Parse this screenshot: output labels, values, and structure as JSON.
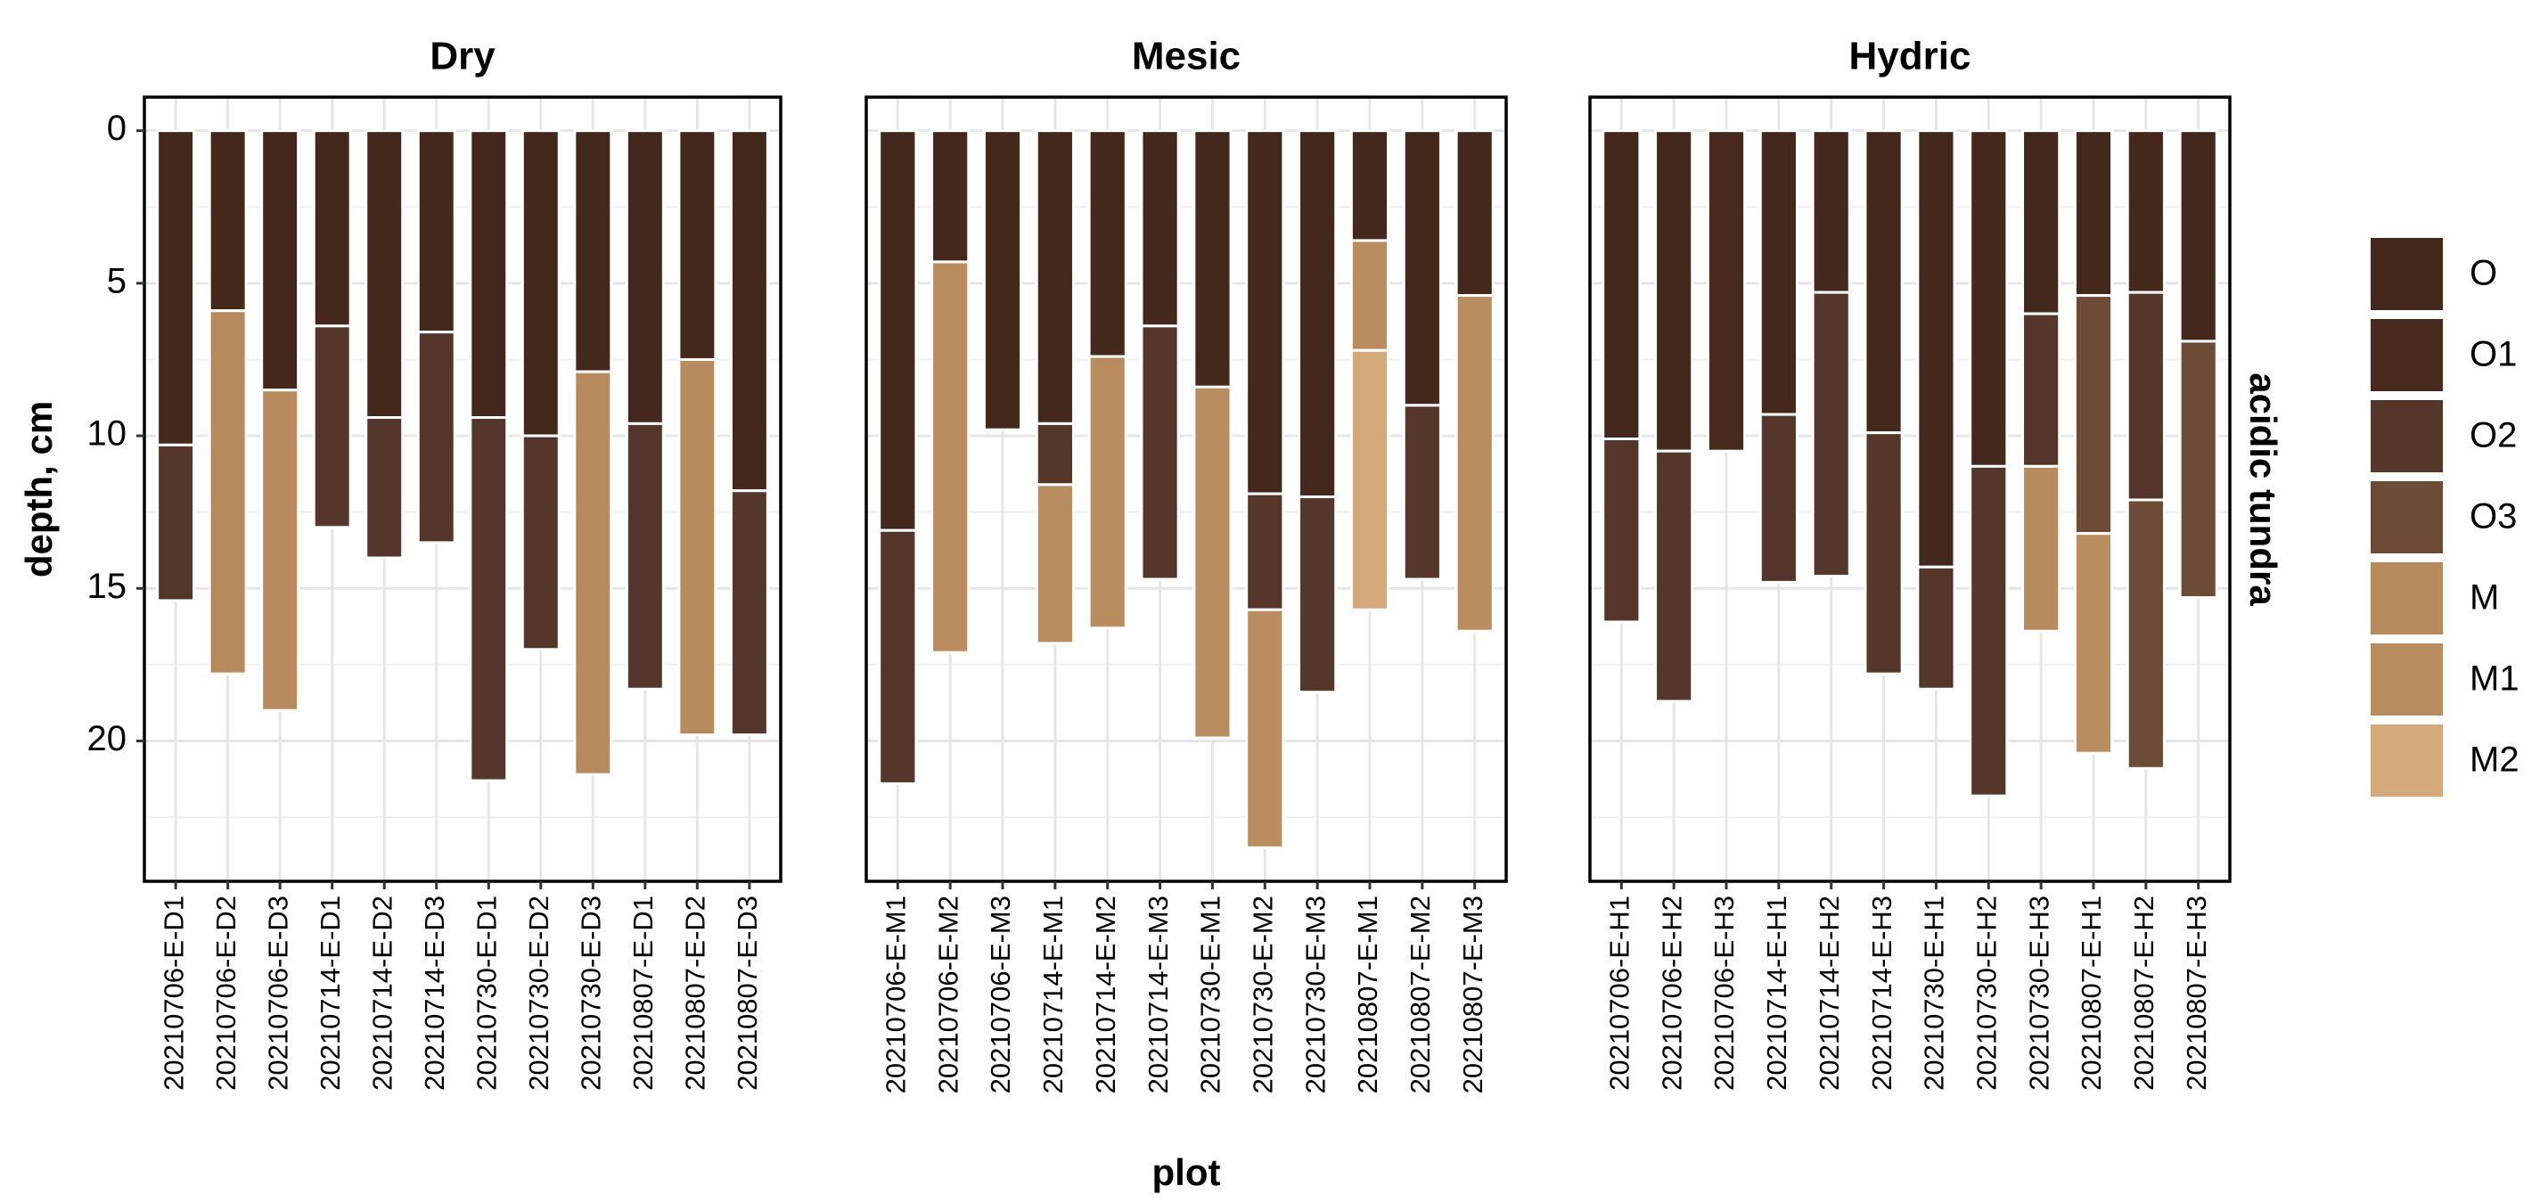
{
  "chart_data": {
    "type": "stacked-bar",
    "y_label": "depth, cm",
    "x_label": "plot",
    "strip_label": "acidic tundra",
    "ylim": [
      -1.1,
      24.6
    ],
    "y_reversed": true,
    "yticks": [
      0,
      5,
      10,
      15,
      20
    ],
    "minor_yticks": [
      2.5,
      7.5,
      12.5,
      17.5,
      22.5
    ],
    "grid": true,
    "legend": "right",
    "panels": [
      {
        "title": "Dry",
        "categories": [
          "20210706-E-D1",
          "20210706-E-D2",
          "20210706-E-D3",
          "20210714-E-D1",
          "20210714-E-D2",
          "20210714-E-D3",
          "20210730-E-D1",
          "20210730-E-D2",
          "20210730-E-D3",
          "20210807-E-D1",
          "20210807-E-D2",
          "20210807-E-D3"
        ]
      },
      {
        "title": "Mesic",
        "categories": [
          "20210706-E-M1",
          "20210706-E-M2",
          "20210706-E-M3",
          "20210714-E-M1",
          "20210714-E-M2",
          "20210714-E-M3",
          "20210730-E-M1",
          "20210730-E-M2",
          "20210730-E-M3",
          "20210807-E-M1",
          "20210807-E-M2",
          "20210807-E-M3"
        ]
      },
      {
        "title": "Hydric",
        "categories": [
          "20210706-E-H1",
          "20210706-E-H2",
          "20210706-E-H3",
          "20210714-E-H1",
          "20210714-E-H2",
          "20210714-E-H3",
          "20210730-E-H1",
          "20210730-E-H2",
          "20210730-E-H3",
          "20210807-E-H1",
          "20210807-E-H2",
          "20210807-E-H3"
        ]
      }
    ],
    "series": [
      {
        "name": "O",
        "color": "#45281c",
        "values": [
          [
            10.3,
            5.9,
            8.5,
            6.4,
            9.4,
            6.6,
            9.4,
            10.0,
            7.9,
            9.6,
            7.5,
            11.8
          ],
          [
            13.1,
            4.3,
            9.8,
            9.6,
            7.4,
            6.4,
            8.4,
            11.9,
            12.0,
            3.6,
            9.0,
            5.4
          ],
          [
            10.1,
            10.5,
            null,
            9.3,
            5.3,
            9.9,
            14.3,
            11.0,
            6.0,
            5.4,
            5.3,
            6.9
          ]
        ]
      },
      {
        "name": "O1",
        "color": "#48291e",
        "values": [
          [
            null,
            null,
            null,
            null,
            null,
            null,
            null,
            null,
            null,
            null,
            null,
            null
          ],
          [
            null,
            null,
            null,
            null,
            null,
            null,
            null,
            null,
            null,
            null,
            null,
            null
          ],
          [
            null,
            null,
            10.5,
            null,
            null,
            null,
            null,
            null,
            null,
            null,
            null,
            null
          ]
        ]
      },
      {
        "name": "O2",
        "color": "#54372a",
        "values": [
          [
            5.1,
            null,
            null,
            6.6,
            4.6,
            6.9,
            11.9,
            7.0,
            null,
            8.7,
            null,
            8.0
          ],
          [
            8.3,
            null,
            null,
            2.0,
            null,
            8.3,
            null,
            3.8,
            6.4,
            null,
            5.7,
            null
          ],
          [
            6.0,
            8.2,
            null,
            5.5,
            9.3,
            7.9,
            4.0,
            10.8,
            5.0,
            null,
            6.8,
            null
          ]
        ]
      },
      {
        "name": "O3",
        "color": "#6c4c37",
        "values": [
          [
            null,
            null,
            null,
            null,
            null,
            null,
            null,
            null,
            null,
            null,
            null,
            null
          ],
          [
            null,
            null,
            null,
            null,
            null,
            null,
            null,
            null,
            null,
            null,
            null,
            null
          ],
          [
            null,
            null,
            null,
            null,
            null,
            null,
            null,
            null,
            null,
            7.8,
            8.8,
            8.4
          ]
        ]
      },
      {
        "name": "M",
        "color": "#b78b5e",
        "values": [
          [
            null,
            11.9,
            10.5,
            null,
            null,
            null,
            null,
            null,
            13.2,
            null,
            12.3,
            null
          ],
          [
            null,
            null,
            null,
            null,
            null,
            null,
            null,
            null,
            null,
            null,
            null,
            null
          ],
          [
            null,
            null,
            null,
            null,
            null,
            null,
            null,
            null,
            5.4,
            null,
            null,
            null
          ]
        ]
      },
      {
        "name": "M1",
        "color": "#b98d60",
        "values": [
          [
            null,
            null,
            null,
            null,
            null,
            null,
            null,
            null,
            null,
            null,
            null,
            null
          ],
          [
            null,
            12.8,
            null,
            5.2,
            8.9,
            null,
            11.5,
            7.8,
            null,
            3.6,
            null,
            11.0
          ],
          [
            null,
            null,
            null,
            null,
            null,
            null,
            null,
            null,
            null,
            7.2,
            null,
            null
          ]
        ]
      },
      {
        "name": "M2",
        "color": "#d5aa7b",
        "values": [
          [
            null,
            null,
            null,
            null,
            null,
            null,
            null,
            null,
            null,
            null,
            null,
            null
          ],
          [
            null,
            null,
            null,
            null,
            null,
            null,
            null,
            null,
            null,
            8.5,
            null,
            null
          ],
          [
            null,
            null,
            null,
            null,
            null,
            null,
            null,
            null,
            null,
            null,
            null,
            null
          ]
        ]
      }
    ]
  }
}
